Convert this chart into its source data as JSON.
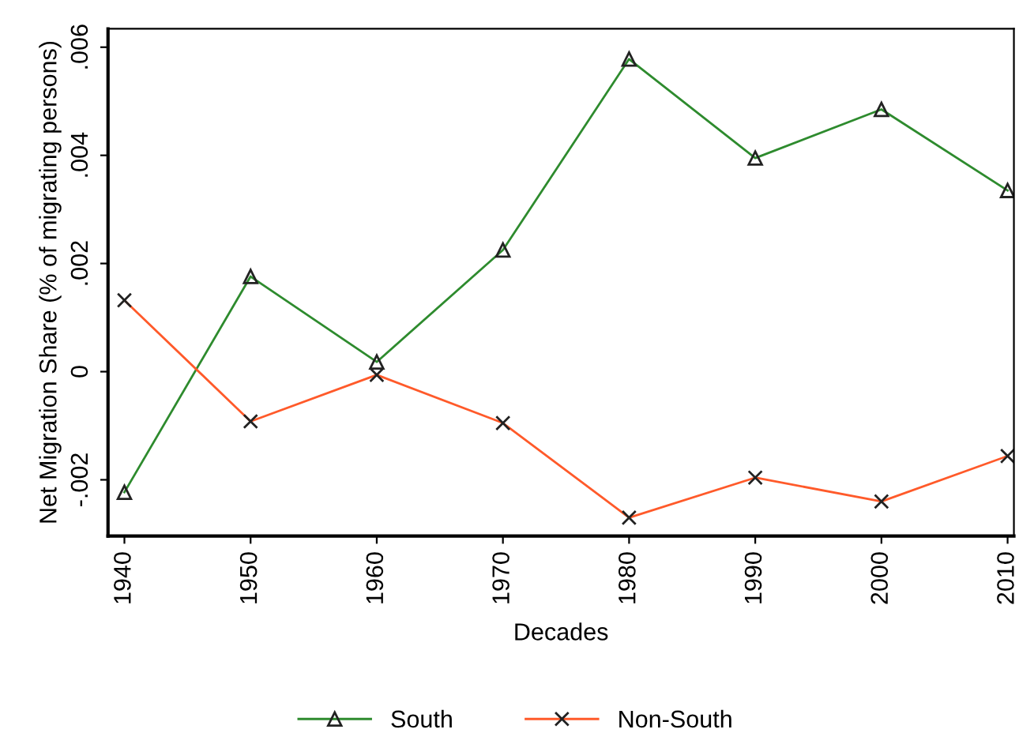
{
  "chart_data": {
    "type": "line",
    "xlabel": "Decades",
    "ylabel": "Net Migration Share (% of migrating persons)",
    "x": [
      1940,
      1950,
      1960,
      1970,
      1980,
      1990,
      2000,
      2010
    ],
    "series": [
      {
        "name": "South",
        "color": "#2e8b2e",
        "marker": "triangle",
        "values": [
          -0.00223,
          0.00176,
          0.00018,
          0.00225,
          0.00578,
          0.00395,
          0.00485,
          0.00335
        ]
      },
      {
        "name": "Non-South",
        "color": "#ff5a2a",
        "marker": "cross",
        "values": [
          0.00132,
          -0.00092,
          -6e-05,
          -0.00095,
          -0.0027,
          -0.00196,
          -0.0024,
          -0.00156
        ]
      }
    ],
    "xlim": [
      1938.7,
      2010.5
    ],
    "xticks": [
      1940,
      1950,
      1960,
      1970,
      1980,
      1990,
      2000,
      2010
    ],
    "ylim": [
      -0.00304,
      0.00634
    ],
    "yticks": [
      {
        "value": -0.002,
        "label": "-.002"
      },
      0,
      {
        "value": 0.002,
        "label": ".002"
      },
      {
        "value": 0.004,
        "label": ".004"
      },
      {
        "value": 0.006,
        "label": ".006"
      }
    ],
    "grid": false,
    "legend": "bottom",
    "line_style": "solid"
  }
}
